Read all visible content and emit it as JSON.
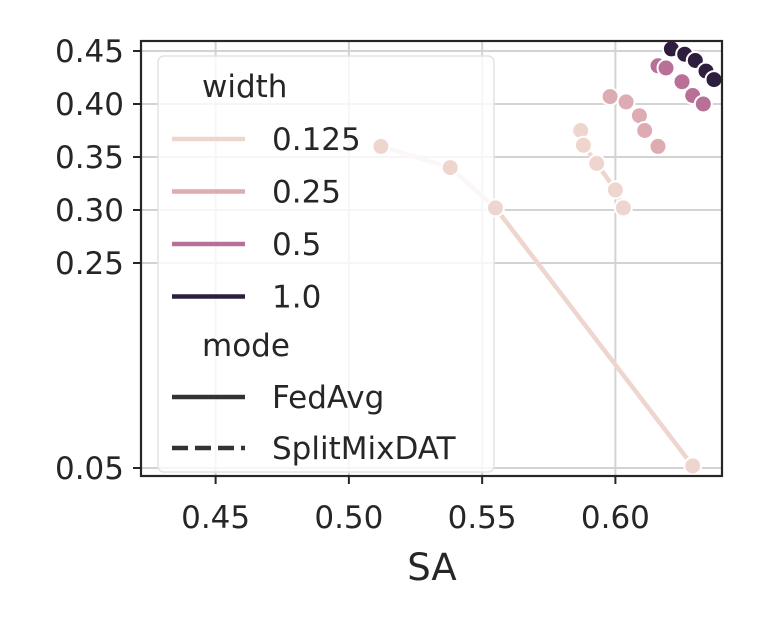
{
  "chart_data": {
    "type": "line",
    "title": "",
    "xlabel": "SA",
    "ylabel": "",
    "xlim": [
      0.422,
      0.64
    ],
    "x_ticks": [
      "0.45",
      "0.50",
      "0.55",
      "0.60"
    ],
    "y_ticks": [
      "0.05",
      "0.25",
      "0.30",
      "0.35",
      "0.40",
      "0.45"
    ],
    "y_tick_values": [
      0.05,
      0.25,
      0.3,
      0.35,
      0.4,
      0.45
    ],
    "grid": true,
    "legend_placement": "upper-left",
    "legend": {
      "hue_title": "width",
      "hue_entries": [
        {
          "label": "0.125",
          "color": "#eed6cf"
        },
        {
          "label": "0.25",
          "color": "#dcacb2"
        },
        {
          "label": "0.5",
          "color": "#b87097"
        },
        {
          "label": "1.0",
          "color": "#2d1e3e"
        }
      ],
      "style_title": "mode",
      "style_entries": [
        {
          "label": "FedAvg",
          "dash": "solid"
        },
        {
          "label": "SplitMixDAT",
          "dash": "dashed"
        }
      ]
    },
    "series": [
      {
        "width": "0.125",
        "mode": "FedAvg",
        "color": "#eed6cf",
        "line": true,
        "dash": "solid",
        "points": [
          [
            0.512,
            0.36
          ],
          [
            0.538,
            0.34
          ],
          [
            0.555,
            0.302
          ],
          [
            0.629,
            0.052
          ]
        ]
      },
      {
        "width": "0.125",
        "mode": "SplitMixDAT",
        "color": "#eed6cf",
        "line": true,
        "dash": "dashed",
        "points": [
          [
            0.587,
            0.375
          ],
          [
            0.588,
            0.361
          ],
          [
            0.593,
            0.344
          ],
          [
            0.6,
            0.319
          ],
          [
            0.603,
            0.302
          ]
        ]
      },
      {
        "width": "0.25",
        "mode": "SplitMixDAT",
        "color": "#dcacb2",
        "line": false,
        "dash": "dashed",
        "points": [
          [
            0.598,
            0.407
          ],
          [
            0.604,
            0.402
          ],
          [
            0.609,
            0.389
          ],
          [
            0.611,
            0.375
          ],
          [
            0.616,
            0.36
          ]
        ]
      },
      {
        "width": "0.5",
        "mode": "SplitMixDAT",
        "color": "#b87097",
        "line": false,
        "dash": "dashed",
        "points": [
          [
            0.616,
            0.436
          ],
          [
            0.619,
            0.434
          ],
          [
            0.625,
            0.421
          ],
          [
            0.629,
            0.408
          ],
          [
            0.633,
            0.4
          ]
        ]
      },
      {
        "width": "1.0",
        "mode": "SplitMixDAT",
        "color": "#2d1e3e",
        "line": false,
        "dash": "dashed",
        "points": [
          [
            0.621,
            0.452
          ],
          [
            0.626,
            0.447
          ],
          [
            0.63,
            0.441
          ],
          [
            0.634,
            0.431
          ],
          [
            0.637,
            0.423
          ]
        ]
      }
    ]
  }
}
